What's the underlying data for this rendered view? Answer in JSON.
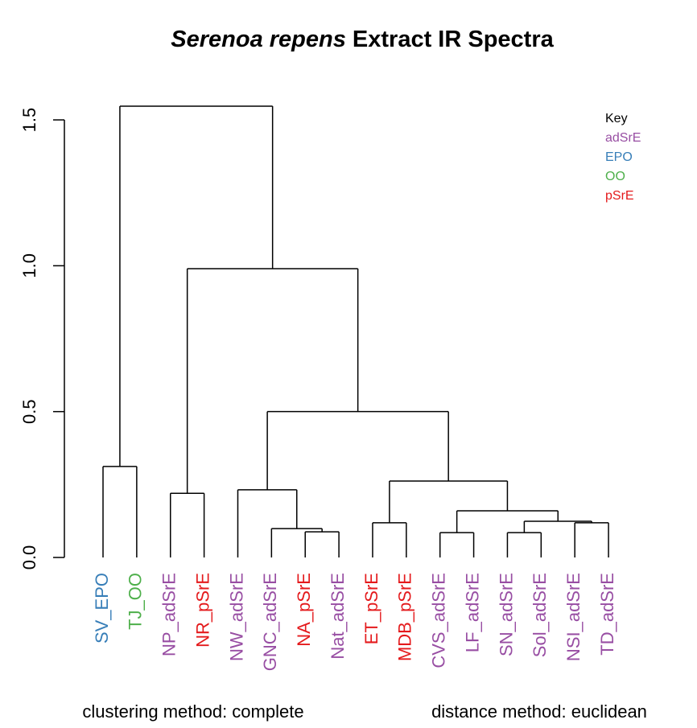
{
  "chart_data": {
    "type": "dendrogram",
    "title": {
      "italic": "Serenoa repens",
      "rest": "Extract IR Spectra"
    },
    "xlabel_left": "clustering method: complete",
    "xlabel_right": "distance method: euclidean",
    "key_title": "Key",
    "key": [
      {
        "name": "adSrE",
        "color": "#984ea3"
      },
      {
        "name": "EPO",
        "color": "#377eb8"
      },
      {
        "name": "OO",
        "color": "#4daf4a"
      },
      {
        "name": "pSrE",
        "color": "#e41a1c"
      }
    ],
    "leaves": [
      {
        "label": "SV_EPO",
        "group": "EPO"
      },
      {
        "label": "TJ_OO",
        "group": "OO"
      },
      {
        "label": "NP_adSrE",
        "group": "adSrE"
      },
      {
        "label": "NR_pSrE",
        "group": "pSrE"
      },
      {
        "label": "NW_adSrE",
        "group": "adSrE"
      },
      {
        "label": "GNC_adSrE",
        "group": "adSrE"
      },
      {
        "label": "NA_pSrE",
        "group": "pSrE"
      },
      {
        "label": "Nat_adSrE",
        "group": "adSrE"
      },
      {
        "label": "ET_pSrE",
        "group": "pSrE"
      },
      {
        "label": "MDB_pSrE",
        "group": "pSrE"
      },
      {
        "label": "CVS_adSrE",
        "group": "adSrE"
      },
      {
        "label": "LF_adSrE",
        "group": "adSrE"
      },
      {
        "label": "SN_adSrE",
        "group": "adSrE"
      },
      {
        "label": "Sol_adSrE",
        "group": "adSrE"
      },
      {
        "label": "NSI_adSrE",
        "group": "adSrE"
      },
      {
        "label": "TD_adSrE",
        "group": "adSrE"
      }
    ],
    "merges": [
      {
        "pair": [
          -7,
          -8
        ],
        "height": 0.088
      },
      {
        "pair": [
          -11,
          -12
        ],
        "height": 0.085
      },
      {
        "pair": [
          -13,
          -14
        ],
        "height": 0.085
      },
      {
        "pair": [
          -6,
          1
        ],
        "height": 0.099
      },
      {
        "pair": [
          -9,
          -10
        ],
        "height": 0.119
      },
      {
        "pair": [
          -15,
          -16
        ],
        "height": 0.119
      },
      {
        "pair": [
          3,
          6
        ],
        "height": 0.124
      },
      {
        "pair": [
          2,
          7
        ],
        "height": 0.16
      },
      {
        "pair": [
          -3,
          -4
        ],
        "height": 0.22
      },
      {
        "pair": [
          -5,
          4
        ],
        "height": 0.232
      },
      {
        "pair": [
          5,
          8
        ],
        "height": 0.262
      },
      {
        "pair": [
          -1,
          -2
        ],
        "height": 0.312
      },
      {
        "pair": [
          10,
          11
        ],
        "height": 0.5
      },
      {
        "pair": [
          9,
          13
        ],
        "height": 0.99
      },
      {
        "pair": [
          12,
          14
        ],
        "height": 1.547
      }
    ],
    "ylim": [
      0,
      1.547
    ],
    "yticks": [
      {
        "value": 0,
        "label": "0.0"
      },
      0.5,
      {
        "value": 1,
        "label": "1.0"
      },
      1.5
    ]
  }
}
